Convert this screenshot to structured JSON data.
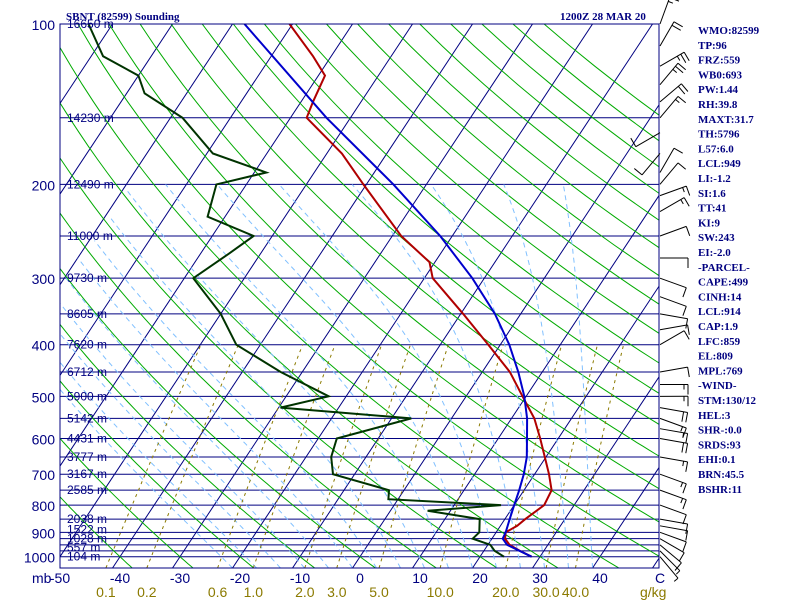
{
  "chart_data": {
    "type": "line",
    "title": "SBNT (82599) Sounding",
    "datetime": "1200Z 28 MAR 20",
    "x_axis": {
      "unit_label": "mb",
      "temp_ticks": [
        -50,
        -40,
        -30,
        -20,
        -10,
        0,
        10,
        20,
        30,
        40
      ],
      "temp_tick_labels": [
        "-50",
        "-40",
        "-30",
        "-20",
        "-10",
        "0",
        "10",
        "20",
        "30",
        "40"
      ],
      "temp_end_label": "C",
      "xlim": [
        -50,
        50
      ]
    },
    "y_axis": {
      "scale": "log",
      "pressure_ticks": [
        100,
        200,
        300,
        400,
        500,
        600,
        700,
        800,
        900,
        1000
      ],
      "pressure_tick_labels": [
        "100",
        "200",
        "300",
        "400",
        "500",
        "600",
        "700",
        "800",
        "900",
        "1000"
      ],
      "ylim": [
        1050,
        100
      ]
    },
    "mixing_ratio_labels": [
      "0.1",
      "0.2",
      "0.6",
      "1.0",
      "2.0",
      "3.0",
      "5.0",
      "10.0",
      "20.0",
      "30.0",
      "40.0"
    ],
    "mixing_ratio_unit": "g/kg",
    "height_labels": [
      {
        "p": 1000,
        "label": "104 m"
      },
      {
        "p": 962,
        "label": "557 m"
      },
      {
        "p": 925,
        "label": "1028 m"
      },
      {
        "p": 889,
        "label": "1522 m"
      },
      {
        "p": 850,
        "label": "2038 m"
      },
      {
        "p": 750,
        "label": "2585 m"
      },
      {
        "p": 700,
        "label": "3167 m"
      },
      {
        "p": 650,
        "label": "3777 m"
      },
      {
        "p": 600,
        "label": "4431 m"
      },
      {
        "p": 550,
        "label": "5142 m"
      },
      {
        "p": 500,
        "label": "5900 m"
      },
      {
        "p": 450,
        "label": "6712 m"
      },
      {
        "p": 400,
        "label": "7620 m"
      },
      {
        "p": 350,
        "label": "8605 m"
      },
      {
        "p": 300,
        "label": "9730 m"
      },
      {
        "p": 250,
        "label": "11000 m"
      },
      {
        "p": 200,
        "label": "12490 m"
      },
      {
        "p": 150,
        "label": "14230 m"
      },
      {
        "p": 100,
        "label": "16650 m"
      }
    ],
    "series": [
      {
        "name": "Temperature",
        "color": "#b00000",
        "points": [
          [
            1000,
            28.6
          ],
          [
            975,
            26.0
          ],
          [
            950,
            23.6
          ],
          [
            925,
            22.2
          ],
          [
            900,
            21.6
          ],
          [
            875,
            22.8
          ],
          [
            850,
            23.4
          ],
          [
            800,
            25.0
          ],
          [
            750,
            24.6
          ],
          [
            700,
            22.4
          ],
          [
            650,
            19.8
          ],
          [
            600,
            17.0
          ],
          [
            550,
            13.8
          ],
          [
            500,
            9.4
          ],
          [
            450,
            4.6
          ],
          [
            400,
            -2.0
          ],
          [
            350,
            -9.6
          ],
          [
            300,
            -18.6
          ],
          [
            280,
            -20.9
          ],
          [
            250,
            -28.5
          ],
          [
            200,
            -40.5
          ],
          [
            175,
            -47.5
          ],
          [
            150,
            -57.3
          ],
          [
            140,
            -58.0
          ],
          [
            125,
            -58.9
          ],
          [
            115,
            -63.0
          ],
          [
            100,
            -70.5
          ]
        ]
      },
      {
        "name": "Dewpoint",
        "color": "#003300",
        "points": [
          [
            1000,
            24.0
          ],
          [
            975,
            21.8
          ],
          [
            950,
            20.4
          ],
          [
            925,
            16.8
          ],
          [
            900,
            17.2
          ],
          [
            850,
            15.8
          ],
          [
            820,
            6.2
          ],
          [
            800,
            17.8
          ],
          [
            780,
            -1.6
          ],
          [
            750,
            -2.5
          ],
          [
            700,
            -13.6
          ],
          [
            650,
            -15.8
          ],
          [
            600,
            -16.9
          ],
          [
            550,
            -6.7
          ],
          [
            525,
            -29.7
          ],
          [
            500,
            -22.9
          ],
          [
            450,
            -33.6
          ],
          [
            400,
            -44.0
          ],
          [
            350,
            -50.0
          ],
          [
            300,
            -58.5
          ],
          [
            270,
            -55.3
          ],
          [
            250,
            -53.1
          ],
          [
            230,
            -62.9
          ],
          [
            200,
            -65.0
          ],
          [
            190,
            -58.0
          ],
          [
            175,
            -69.0
          ],
          [
            150,
            -78.0
          ],
          [
            135,
            -87.0
          ],
          [
            125,
            -90.0
          ],
          [
            115,
            -98.0
          ],
          [
            100,
            -104.0
          ]
        ]
      },
      {
        "name": "Parcel",
        "color": "#0000cc",
        "points": [
          [
            1000,
            28.6
          ],
          [
            950,
            23.2
          ],
          [
            925,
            21.8
          ],
          [
            900,
            21.6
          ],
          [
            850,
            20.8
          ],
          [
            800,
            20.0
          ],
          [
            750,
            19.2
          ],
          [
            700,
            18.2
          ],
          [
            650,
            16.8
          ],
          [
            600,
            14.8
          ],
          [
            550,
            12.6
          ],
          [
            500,
            9.7
          ],
          [
            450,
            6.0
          ],
          [
            400,
            1.5
          ],
          [
            350,
            -4.3
          ],
          [
            300,
            -12.0
          ],
          [
            250,
            -22.0
          ],
          [
            200,
            -35.5
          ],
          [
            150,
            -54.0
          ],
          [
            100,
            -78.0
          ]
        ]
      }
    ],
    "wind_barbs": [
      [
        1000,
        140,
        5
      ],
      [
        975,
        135,
        5
      ],
      [
        950,
        130,
        10
      ],
      [
        925,
        120,
        10
      ],
      [
        900,
        110,
        10
      ],
      [
        875,
        100,
        10
      ],
      [
        850,
        100,
        10
      ],
      [
        800,
        110,
        10
      ],
      [
        750,
        110,
        15
      ],
      [
        700,
        110,
        15
      ],
      [
        650,
        100,
        15
      ],
      [
        600,
        100,
        20
      ],
      [
        575,
        100,
        15
      ],
      [
        550,
        110,
        15
      ],
      [
        525,
        100,
        20
      ],
      [
        500,
        90,
        15
      ],
      [
        475,
        90,
        15
      ],
      [
        450,
        80,
        10
      ],
      [
        400,
        60,
        10
      ],
      [
        375,
        80,
        10
      ],
      [
        350,
        100,
        10
      ],
      [
        325,
        110,
        10
      ],
      [
        300,
        110,
        10
      ],
      [
        275,
        90,
        10
      ],
      [
        250,
        70,
        10
      ],
      [
        225,
        60,
        15
      ],
      [
        210,
        70,
        15
      ],
      [
        200,
        40,
        10
      ],
      [
        190,
        30,
        10
      ],
      [
        175,
        220,
        10
      ],
      [
        160,
        240,
        10
      ],
      [
        150,
        40,
        15
      ],
      [
        140,
        50,
        20
      ],
      [
        130,
        40,
        25
      ],
      [
        120,
        60,
        25
      ],
      [
        110,
        30,
        20
      ],
      [
        100,
        20,
        15
      ]
    ],
    "grid": true
  },
  "indices": [
    "WMO:82599",
    "TP:96",
    "FRZ:559",
    "WB0:693",
    "PW:1.44",
    "RH:39.8",
    "MAXT:31.7",
    "TH:5796",
    "L57:6.0",
    "LCL:949",
    "LI:-1.2",
    "SI:1.6",
    "TT:41",
    "KI:9",
    "SW:243",
    "EI:-2.0",
    "-PARCEL-",
    "CAPE:499",
    "CINH:14",
    "LCL:914",
    "CAP:1.9",
    "LFC:859",
    "EL:809",
    "MPL:769",
    "-WIND-",
    "STM:130/12",
    "HEL:3",
    "SHR-:0.0",
    "SRDS:93",
    "EHI:0.1",
    "BRN:45.5",
    "BSHR:11"
  ],
  "colors": {
    "frame": "#000080",
    "isotherm": "#000080",
    "dry_adiabat": "#00aa00",
    "moist_adiabat": "#80c0ff",
    "mixing_ratio": "#8b7a00"
  }
}
